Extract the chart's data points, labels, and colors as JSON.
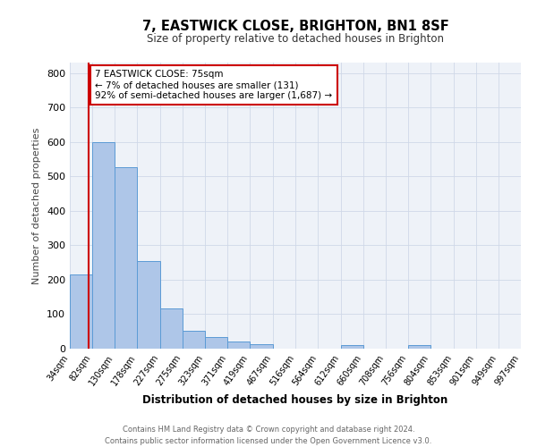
{
  "title": "7, EASTWICK CLOSE, BRIGHTON, BN1 8SF",
  "subtitle": "Size of property relative to detached houses in Brighton",
  "xlabel": "Distribution of detached houses by size in Brighton",
  "ylabel": "Number of detached properties",
  "bar_edges": [
    34,
    82,
    130,
    178,
    227,
    275,
    323,
    371,
    419,
    467,
    516,
    564,
    612,
    660,
    708,
    756,
    804,
    853,
    901,
    949,
    997
  ],
  "bar_heights": [
    215,
    600,
    527,
    255,
    117,
    51,
    35,
    20,
    13,
    0,
    0,
    0,
    10,
    0,
    0,
    10,
    0,
    0,
    0,
    0
  ],
  "tick_labels": [
    "34sqm",
    "82sqm",
    "130sqm",
    "178sqm",
    "227sqm",
    "275sqm",
    "323sqm",
    "371sqm",
    "419sqm",
    "467sqm",
    "516sqm",
    "564sqm",
    "612sqm",
    "660sqm",
    "708sqm",
    "756sqm",
    "804sqm",
    "853sqm",
    "901sqm",
    "949sqm",
    "997sqm"
  ],
  "bar_color": "#aec6e8",
  "bar_edge_color": "#5b9bd5",
  "vline_x": 75,
  "vline_color": "#cc0000",
  "annotation_line1": "7 EASTWICK CLOSE: 75sqm",
  "annotation_line2": "← 7% of detached houses are smaller (131)",
  "annotation_line3": "92% of semi-detached houses are larger (1,687) →",
  "annotation_box_color": "#ffffff",
  "annotation_box_edge": "#cc0000",
  "ylim": [
    0,
    830
  ],
  "grid_color": "#d0d8e8",
  "footer_line1": "Contains HM Land Registry data © Crown copyright and database right 2024.",
  "footer_line2": "Contains public sector information licensed under the Open Government Licence v3.0.",
  "bg_color": "#eef2f8"
}
